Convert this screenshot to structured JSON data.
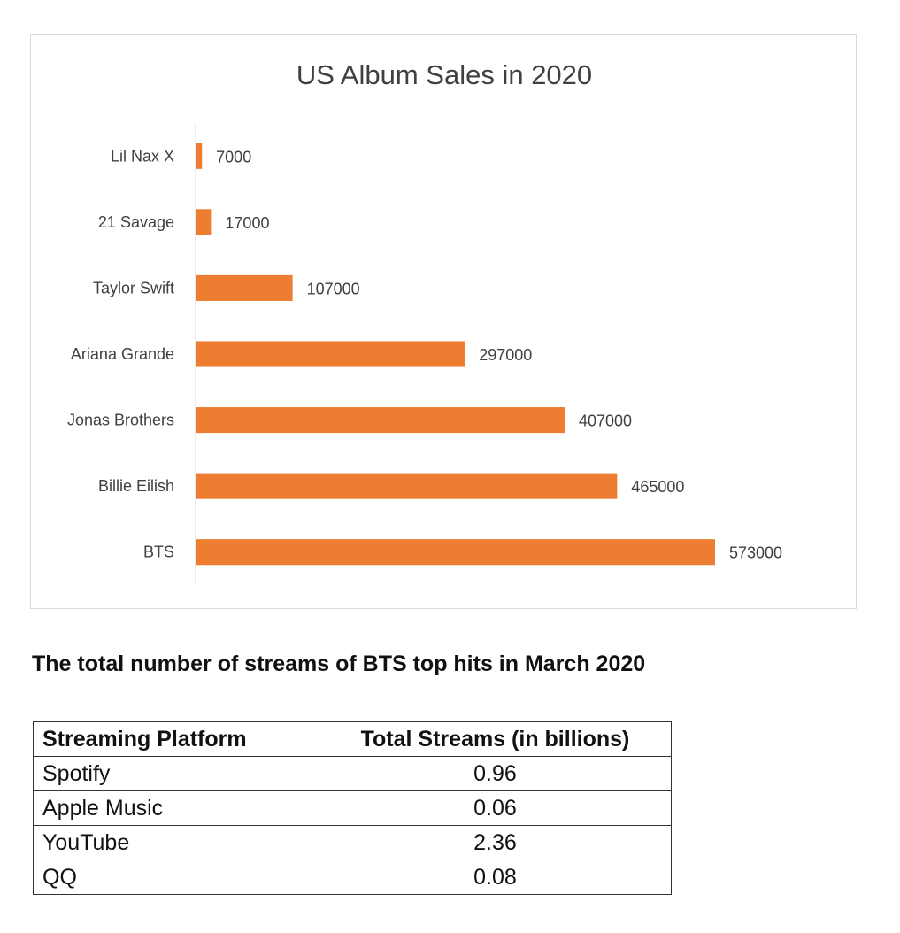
{
  "chart_data": {
    "type": "bar",
    "orientation": "horizontal",
    "title": "US Album Sales in 2020",
    "categories": [
      "Lil Nax X",
      "21 Savage",
      "Taylor Swift",
      "Ariana Grande",
      "Jonas Brothers",
      "Billie Eilish",
      "BTS"
    ],
    "values": [
      7000,
      17000,
      107000,
      297000,
      407000,
      465000,
      573000
    ],
    "data_labels": [
      "7000",
      "17000",
      "107000",
      "297000",
      "407000",
      "465000",
      "573000"
    ],
    "xlabel": "",
    "ylabel": "",
    "xlim": [
      0,
      600000
    ],
    "grid": false,
    "legend": "none",
    "bar_color": "#ED7D31",
    "axis_color": "#d9d9d9"
  },
  "streams_section": {
    "heading": "The total number of streams of BTS top hits in March 2020",
    "table": {
      "headers": [
        "Streaming Platform",
        "Total Streams (in billions)"
      ],
      "rows": [
        [
          "Spotify",
          "0.96"
        ],
        [
          "Apple Music",
          "0.06"
        ],
        [
          "YouTube",
          "2.36"
        ],
        [
          "QQ",
          "0.08"
        ]
      ]
    }
  }
}
